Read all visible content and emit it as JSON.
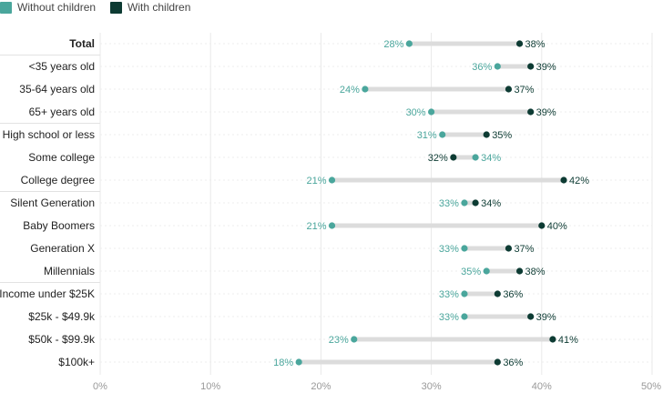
{
  "chart_data": {
    "type": "dumbbell",
    "title": "",
    "xlabel": "",
    "ylabel": "",
    "xlim": [
      0,
      50
    ],
    "x_ticks": [
      "0%",
      "10%",
      "20%",
      "30%",
      "40%",
      "50%"
    ],
    "x_tick_values": [
      0,
      10,
      20,
      30,
      40,
      50
    ],
    "grid": true,
    "legend_position": "top-left",
    "series": [
      {
        "name": "Without children",
        "color": "#4aa69c"
      },
      {
        "name": "With children",
        "color": "#0d3b33"
      }
    ],
    "categories": [
      {
        "label": "Total",
        "bold": true,
        "without": 28,
        "with": 38,
        "without_label": "28%",
        "with_label": "38%"
      },
      {
        "label": "<35 years old",
        "without": 36,
        "with": 39,
        "without_label": "36%",
        "with_label": "39%"
      },
      {
        "label": "35-64 years old",
        "without": 24,
        "with": 37,
        "without_label": "24%",
        "with_label": "37%"
      },
      {
        "label": "65+ years old",
        "without": 30,
        "with": 39,
        "without_label": "30%",
        "with_label": "39%"
      },
      {
        "label": "High school or less",
        "without": 31,
        "with": 35,
        "without_label": "31%",
        "with_label": "35%"
      },
      {
        "label": "Some college",
        "without": 34,
        "with": 32,
        "without_label": "34%",
        "with_label": "32%"
      },
      {
        "label": "College degree",
        "without": 21,
        "with": 42,
        "without_label": "21%",
        "with_label": "42%"
      },
      {
        "label": "Silent Generation",
        "without": 33,
        "with": 34,
        "without_label": "33%",
        "with_label": "34%"
      },
      {
        "label": "Baby Boomers",
        "without": 21,
        "with": 40,
        "without_label": "21%",
        "with_label": "40%"
      },
      {
        "label": "Generation X",
        "without": 33,
        "with": 37,
        "without_label": "33%",
        "with_label": "37%"
      },
      {
        "label": "Millennials",
        "without": 35,
        "with": 38,
        "without_label": "35%",
        "with_label": "38%"
      },
      {
        "label": "Income under $25K",
        "without": 33,
        "with": 36,
        "without_label": "33%",
        "with_label": "36%"
      },
      {
        "label": "$25k - $49.9k",
        "without": 33,
        "with": 39,
        "without_label": "33%",
        "with_label": "39%"
      },
      {
        "label": "$50k - $99.9k",
        "without": 23,
        "with": 41,
        "without_label": "23%",
        "with_label": "41%"
      },
      {
        "label": "$100k+",
        "without": 18,
        "with": 36,
        "without_label": "18%",
        "with_label": "36%"
      }
    ],
    "group_ends": [
      0,
      3,
      6,
      10
    ]
  }
}
